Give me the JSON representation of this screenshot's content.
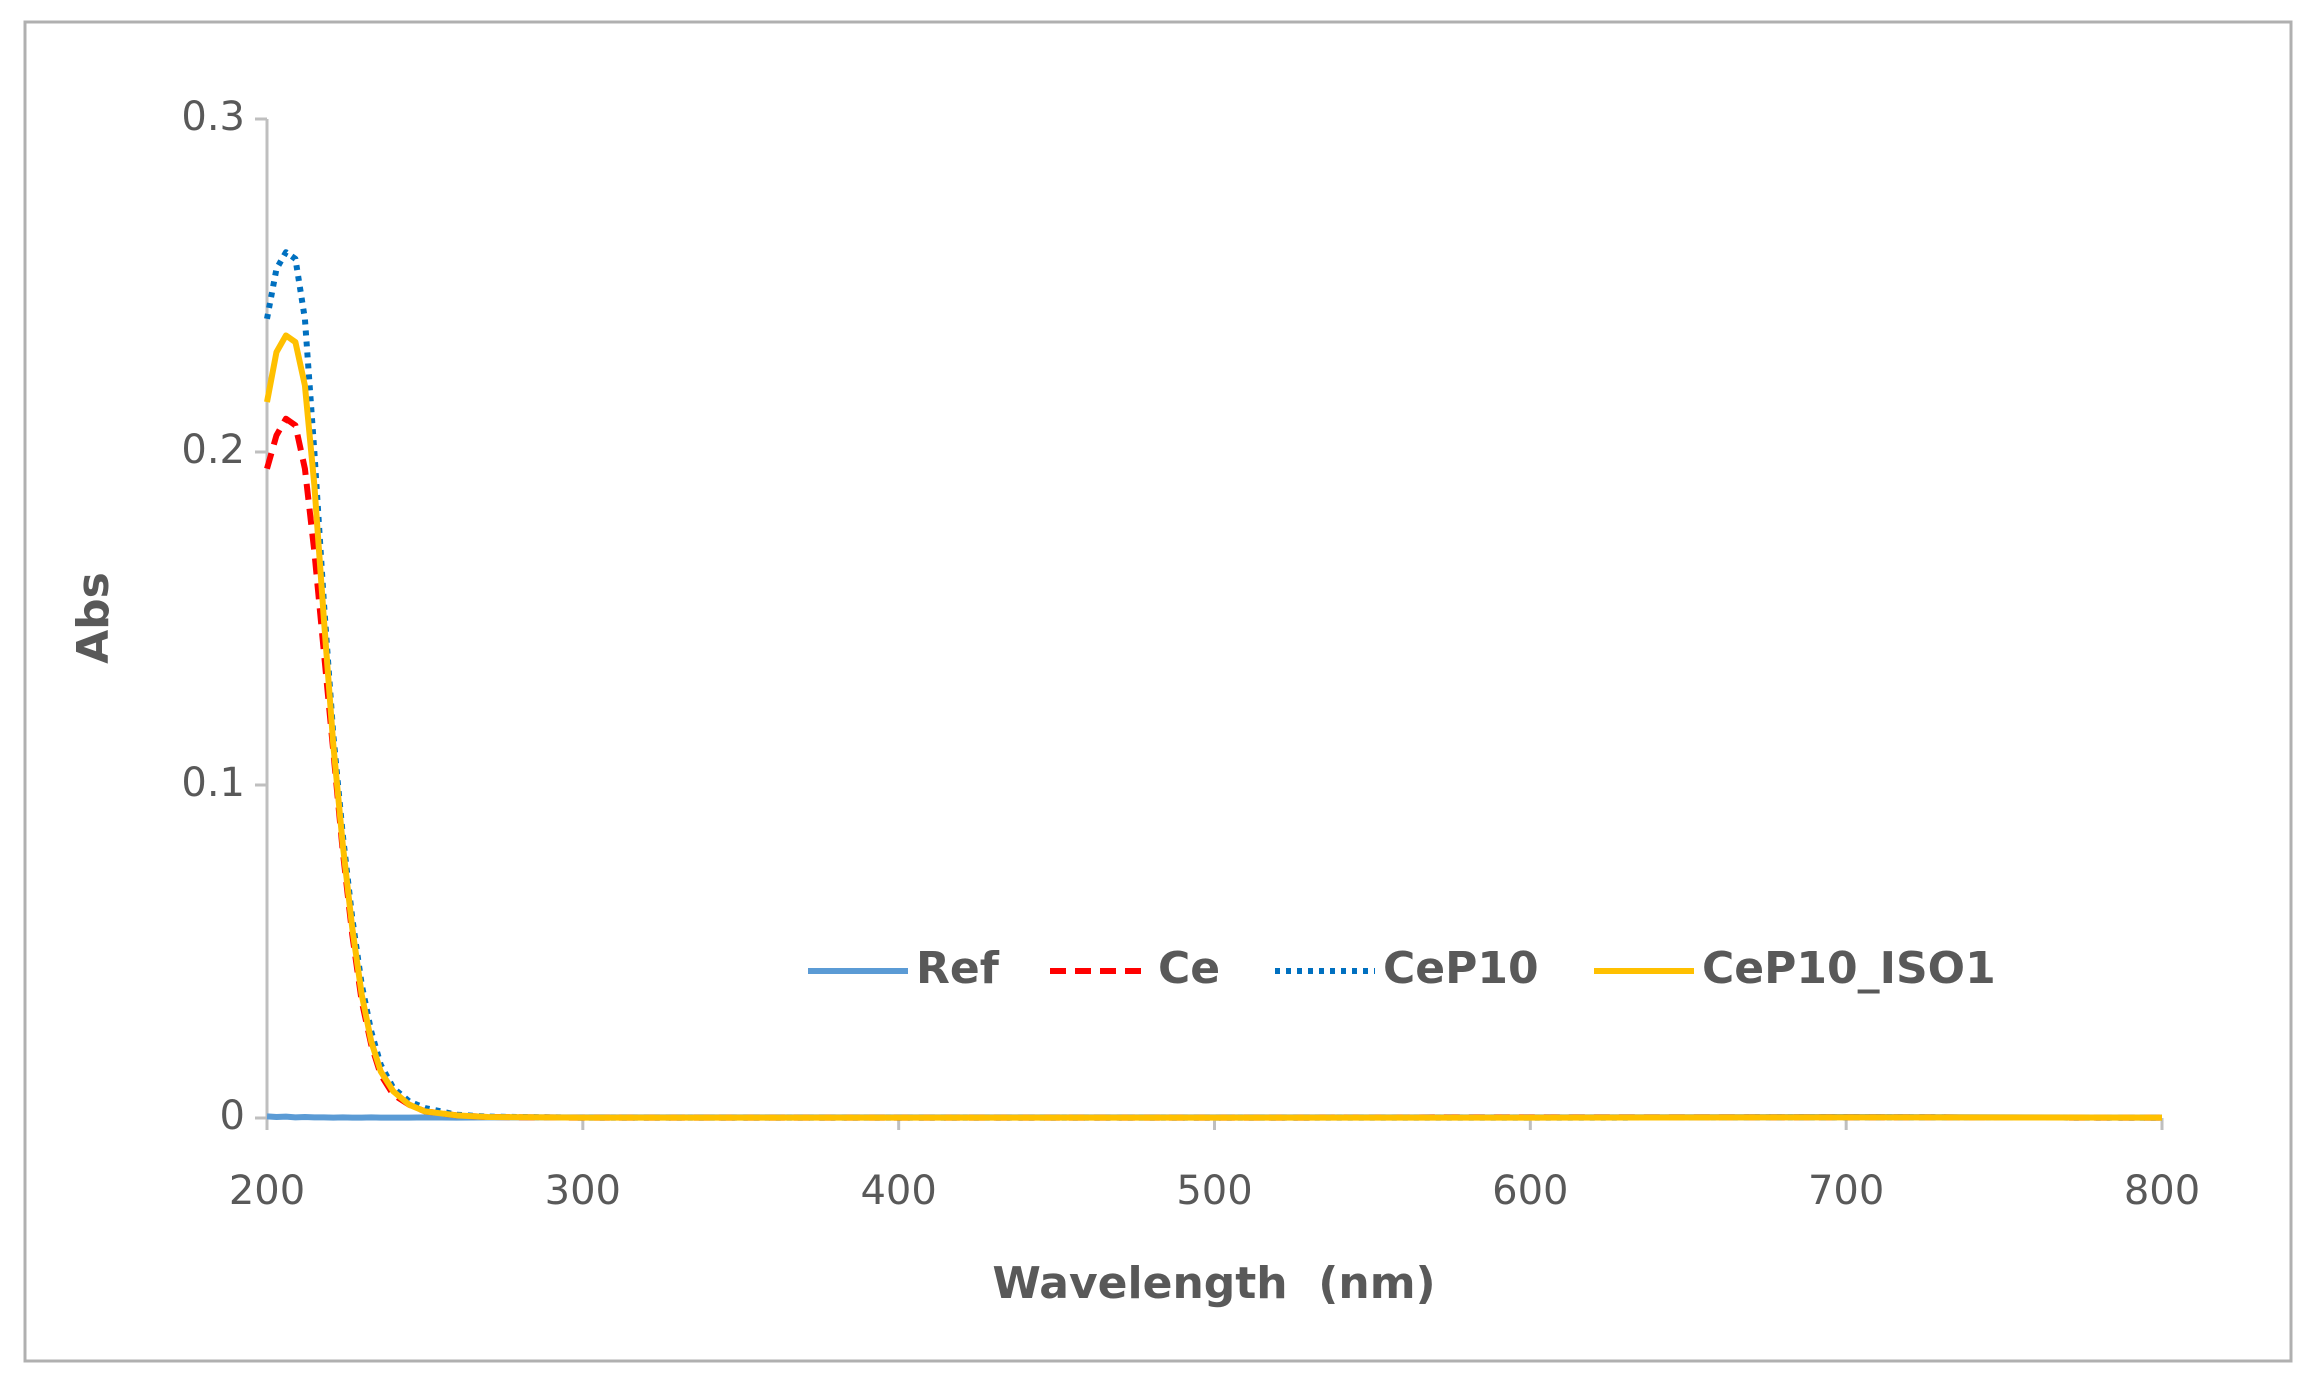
{
  "chart_data": {
    "type": "line",
    "x_label": "Wavelength  (nm)",
    "y_label": "Abs",
    "x": [
      200,
      203,
      206,
      209,
      212,
      215,
      218,
      221,
      224,
      227,
      230,
      233,
      236,
      240,
      245,
      250,
      260,
      270,
      300,
      400,
      500,
      600,
      700,
      800
    ],
    "series": [
      {
        "name": "Ref",
        "color": "#5b9bd5",
        "style": "solid",
        "values": [
          0.0005,
          0.0003,
          0.0004,
          0.0002,
          0.0003,
          0.0002,
          0.0002,
          0.0001,
          0.0002,
          0.0001,
          0.0001,
          0.0002,
          0.0001,
          0.0001,
          0.0001,
          0.0002,
          0.0001,
          0.0002,
          0.0002,
          0.0002,
          0.0002,
          0.0002,
          0.0003,
          0.0001
        ]
      },
      {
        "name": "Ce",
        "color": "#ff0000",
        "style": "dashed",
        "values": [
          0.195,
          0.205,
          0.21,
          0.208,
          0.195,
          0.17,
          0.14,
          0.11,
          0.08,
          0.055,
          0.035,
          0.022,
          0.013,
          0.007,
          0.004,
          0.002,
          0.0008,
          0.0003,
          0.0001,
          0.0001,
          0.0001,
          0.0002,
          0.0002,
          0.0001
        ]
      },
      {
        "name": "CeP10",
        "color": "#0070c0",
        "style": "dotted",
        "values": [
          0.24,
          0.255,
          0.26,
          0.258,
          0.24,
          0.2,
          0.155,
          0.115,
          0.085,
          0.06,
          0.04,
          0.026,
          0.016,
          0.009,
          0.005,
          0.003,
          0.001,
          0.0004,
          0.0001,
          0.0001,
          0.0001,
          0.0001,
          0.0002,
          0.0001
        ]
      },
      {
        "name": "CeP10_ISO1",
        "color": "#ffc000",
        "style": "solid",
        "values": [
          0.215,
          0.23,
          0.235,
          0.233,
          0.22,
          0.19,
          0.15,
          0.112,
          0.082,
          0.057,
          0.037,
          0.023,
          0.014,
          0.008,
          0.004,
          0.002,
          0.0008,
          0.0003,
          0.0001,
          0.0001,
          0.0001,
          0.0001,
          0.0002,
          0.0001
        ]
      }
    ],
    "xlim": [
      200,
      800
    ],
    "xticks": [
      200,
      300,
      400,
      500,
      600,
      700,
      800
    ],
    "ylim": [
      0,
      0.3
    ],
    "yticks": [
      0,
      0.1,
      0.2,
      0.3
    ],
    "grid": false
  }
}
